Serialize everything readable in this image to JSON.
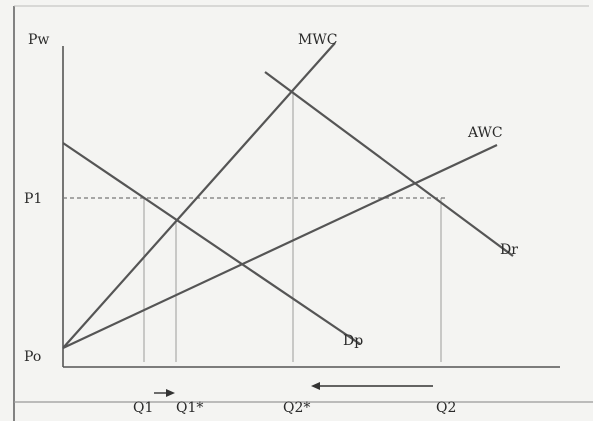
{
  "labels": {
    "y_axis": "Pw",
    "origin": "Po",
    "p1": "P1",
    "mwc": "MWC",
    "awc": "AWC",
    "dr": "Dr",
    "dp": "Dp",
    "q1": "Q1",
    "q1_star": "Q1*",
    "q2_star": "Q2*",
    "q2": "Q2"
  }
}
